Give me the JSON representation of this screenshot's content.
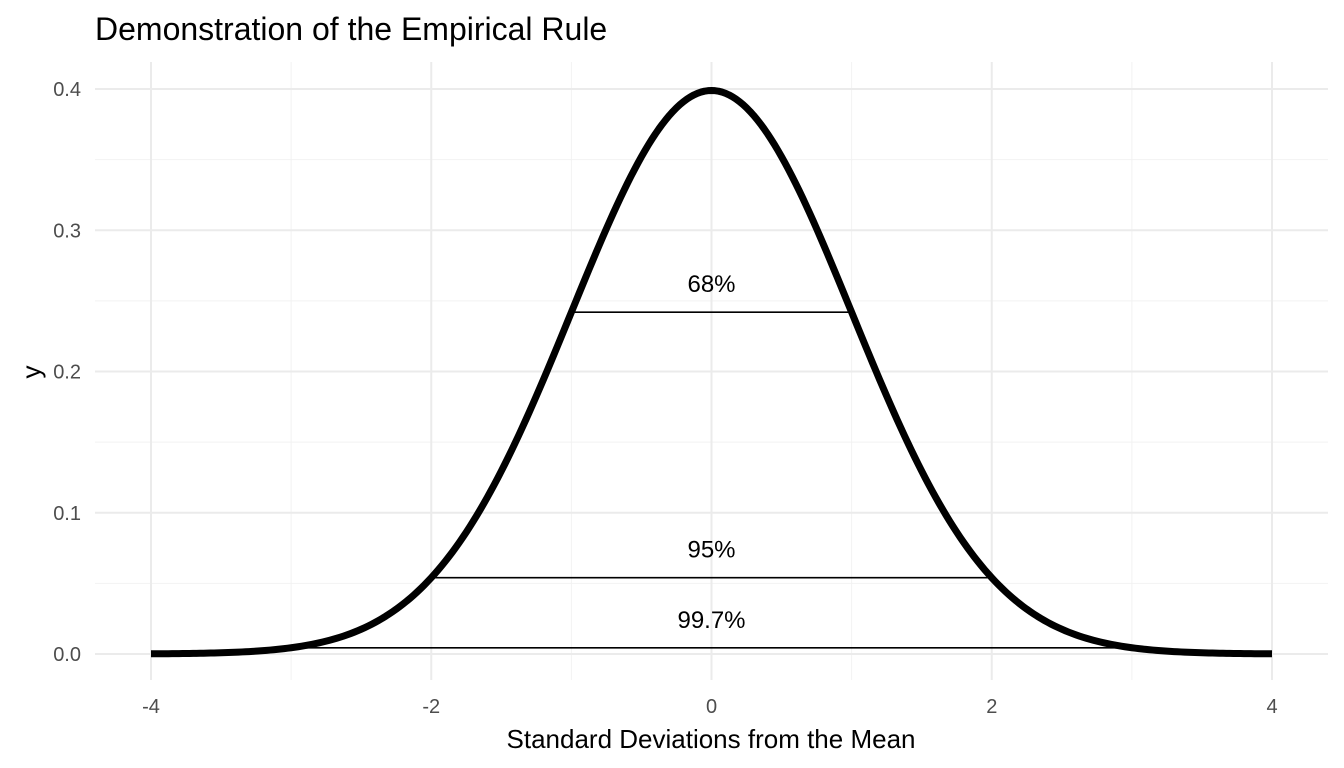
{
  "chart_data": {
    "type": "line",
    "title": "Demonstration of the Empirical Rule",
    "xlabel": "Standard Deviations from the Mean",
    "ylabel": "y",
    "xlim": [
      -4,
      4
    ],
    "ylim": [
      0,
      0.4
    ],
    "x_ticks": [
      "-4",
      "-2",
      "0",
      "2",
      "4"
    ],
    "y_ticks": [
      "0.0",
      "0.1",
      "0.2",
      "0.3",
      "0.4"
    ],
    "grid": true,
    "curve": "standard normal density",
    "series": [
      {
        "x": [
          -4,
          -3.75,
          -3.5,
          -3.25,
          -3,
          -2.75,
          -2.5,
          -2.25,
          -2,
          -1.75,
          -1.5,
          -1.25,
          -1,
          -0.75,
          -0.5,
          -0.25,
          0,
          0.25,
          0.5,
          0.75,
          1,
          1.25,
          1.5,
          1.75,
          2,
          2.25,
          2.5,
          2.75,
          3,
          3.25,
          3.5,
          3.75,
          4
        ],
        "values": [
          0.0001,
          0.0004,
          0.0009,
          0.002,
          0.0044,
          0.0091,
          0.0175,
          0.0317,
          0.054,
          0.0863,
          0.1295,
          0.1826,
          0.242,
          0.3011,
          0.3521,
          0.3867,
          0.3989,
          0.3867,
          0.3521,
          0.3011,
          0.242,
          0.1826,
          0.1295,
          0.0863,
          0.054,
          0.0317,
          0.0175,
          0.0091,
          0.0044,
          0.002,
          0.0009,
          0.0004,
          0.0001
        ],
        "color": "#000000"
      }
    ],
    "annotations": [
      {
        "label": "68%",
        "x_start": -1,
        "x_end": 1,
        "y": 0.242,
        "label_y": 0.262
      },
      {
        "label": "95%",
        "x_start": -2,
        "x_end": 2,
        "y": 0.054,
        "label_y": 0.074
      },
      {
        "label": "99.7%",
        "x_start": -3,
        "x_end": 3,
        "y": 0.0044,
        "label_y": 0.024
      }
    ]
  }
}
